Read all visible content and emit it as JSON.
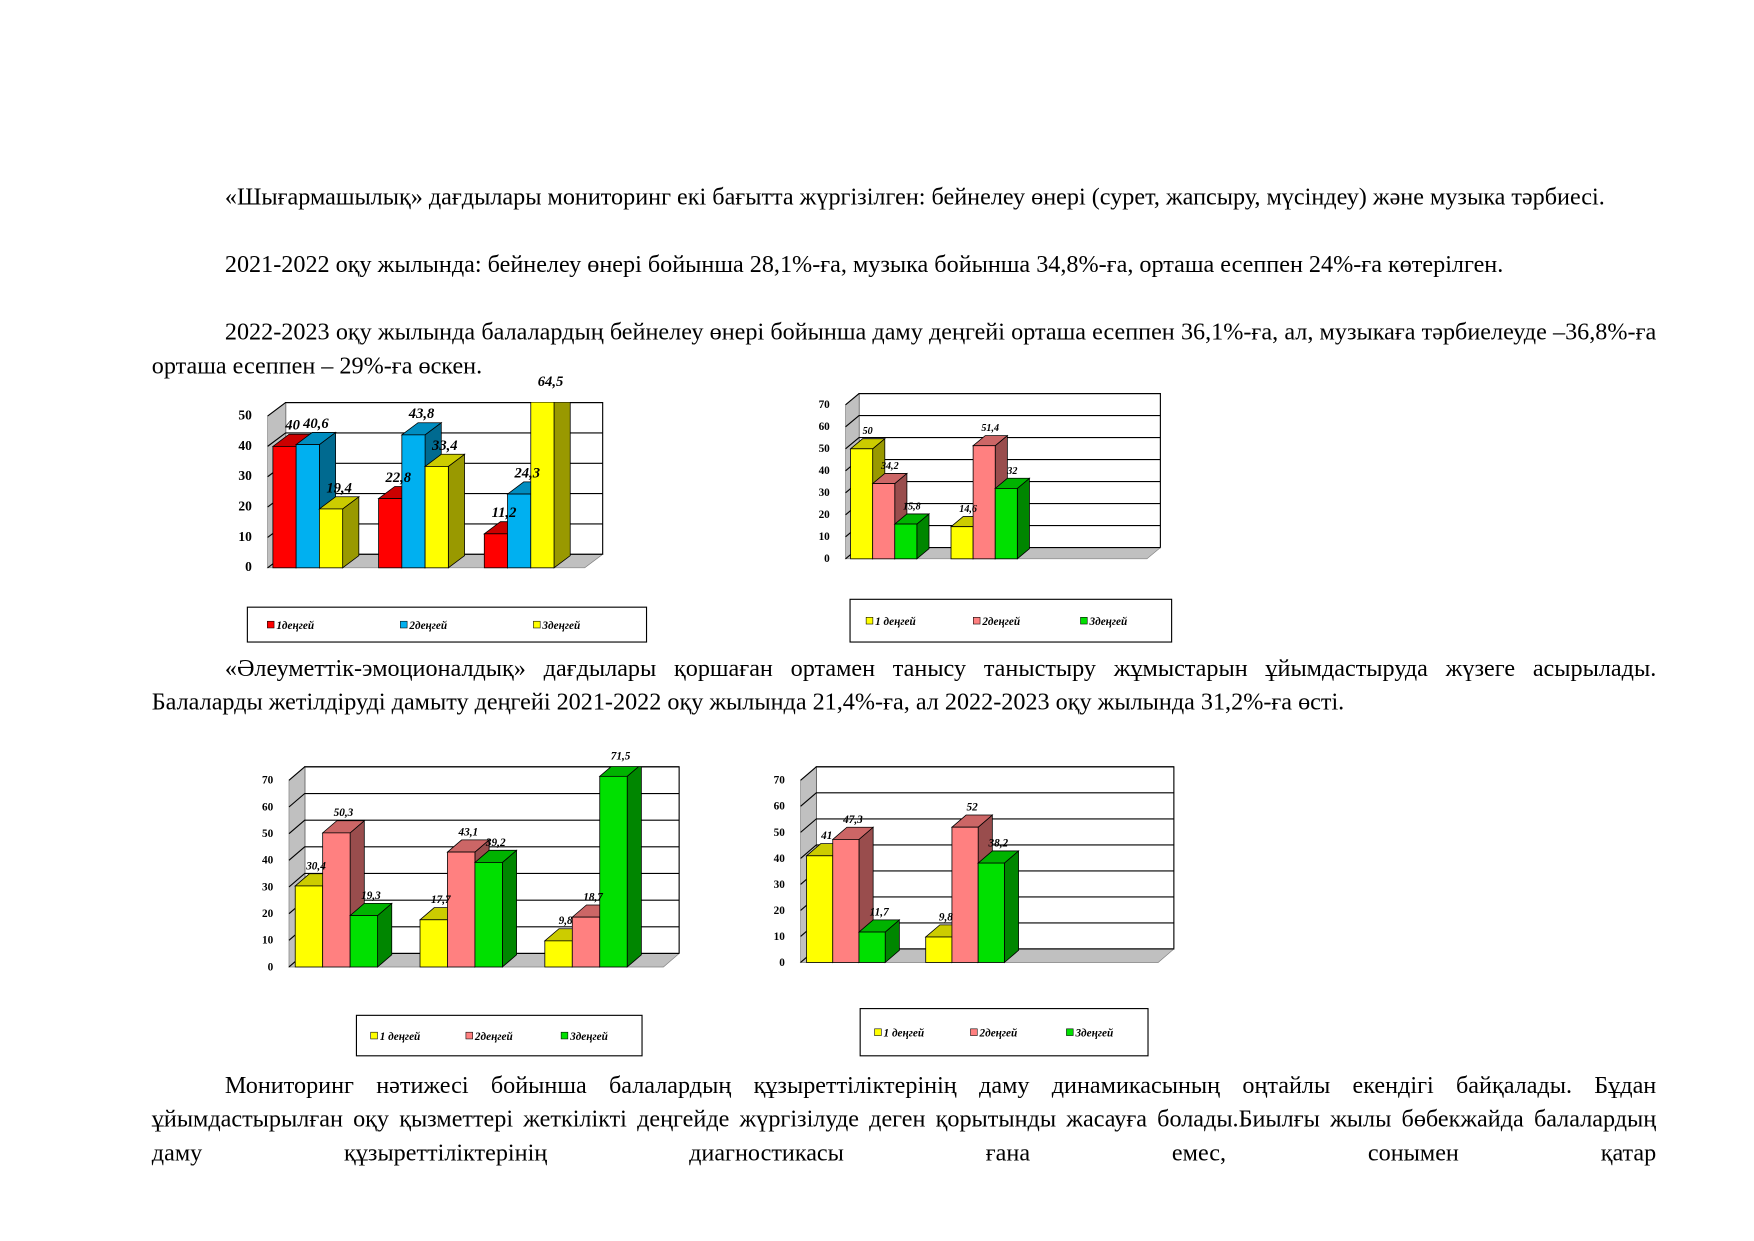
{
  "paragraphs": [
    "«Шығармашылық» дағдылары мониторинг екі бағытта жүргізілген: бейнелеу өнері (сурет, жапсыру, мүсіндеу) және музыка тәрбиесі.",
    "2021-2022 оқу жылында: бейнелеу өнері бойынша 28,1%-ға, музыка бойынша 34,8%-ға, орташа есеппен 24%-ға көтерілген.",
    "2022-2023 оқу жылында балалардың бейнелеу өнері бойынша даму деңгейі орташа есеппен 36,1%-ға, ал, музыкаға тәрбиелеуде –36,8%-ға орташа есеппен – 29%-ға өскен.",
    "«Әлеуметтік-эмоционалдық» дағдылары қоршаған ортамен танысу таныстыру жұмыстарын ұйымдастыруда жүзеге асырылады. Балаларды жетілдіруді дамыту деңгейі 2021-2022 оқу жылында 21,4%-ға, ал 2022-2023 оқу жылында 31,2%-ға өсті.",
    "Мониторинг нәтижесі бойынша балалардың құзыреттіліктерінің даму динамикасының оңтайлы екендігі байқалады. Бұдан ұйымдастырылған оқу қызметтері жеткілікті деңгейде жүргізілуде деген қорытынды жасауға болады.Биылғы жылы бөбекжайда балалардың даму құзыреттіліктерінің диагностикасы ғана емес, сонымен қатар"
  ],
  "chart_data": [
    {
      "type": "bar",
      "categories": [
        null,
        null,
        null
      ],
      "ylim": [
        0,
        50
      ],
      "yticks": [
        0,
        10,
        20,
        30,
        40,
        50
      ],
      "series": [
        {
          "name": "1деңгей",
          "color": "#ff0000",
          "values": [
            40,
            22.8,
            11.2
          ],
          "value_labels": [
            "40",
            "22,8",
            "11,2"
          ]
        },
        {
          "name": "2деңгей",
          "color": "#00b0f0",
          "values": [
            40.6,
            43.8,
            24.3
          ],
          "value_labels": [
            "40,6",
            "43,8",
            "24,3"
          ]
        },
        {
          "name": "3деңгей",
          "color": "#ffff00",
          "values": [
            19.4,
            33.4,
            64.5
          ],
          "value_labels": [
            "19,4",
            "33,4",
            "64,5"
          ]
        }
      ]
    },
    {
      "type": "bar",
      "categories": [
        null,
        null,
        null
      ],
      "ylim": [
        0,
        70
      ],
      "yticks": [
        0,
        10,
        20,
        30,
        40,
        50,
        60,
        70
      ],
      "series": [
        {
          "name": "1 деңгей",
          "color": "#ffff00",
          "values": [
            50,
            14.6,
            null
          ],
          "value_labels": [
            "50",
            "14,6",
            null
          ]
        },
        {
          "name": "2деңгей",
          "color": "#ff8080",
          "values": [
            34.2,
            51.4,
            null
          ],
          "value_labels": [
            "34,2",
            "51,4",
            null
          ]
        },
        {
          "name": "3деңгей",
          "color": "#00e000",
          "values": [
            15.8,
            32,
            null
          ],
          "value_labels": [
            "15,8",
            "32",
            null
          ]
        }
      ]
    },
    {
      "type": "bar",
      "categories": [
        null,
        null,
        null
      ],
      "ylim": [
        0,
        70
      ],
      "yticks": [
        0,
        10,
        20,
        30,
        40,
        50,
        60,
        70
      ],
      "series": [
        {
          "name": "1 деңгей",
          "color": "#ffff00",
          "values": [
            30.4,
            17.7,
            9.8
          ],
          "value_labels": [
            "30,4",
            "17,7",
            "9,8"
          ]
        },
        {
          "name": "2деңгей",
          "color": "#ff8080",
          "values": [
            50.3,
            43.1,
            18.7
          ],
          "value_labels": [
            "50,3",
            "43,1",
            "18,7"
          ]
        },
        {
          "name": "3деңгей",
          "color": "#00e000",
          "values": [
            19.3,
            39.2,
            71.5
          ],
          "value_labels": [
            "19,3",
            "39,2",
            "71,5"
          ]
        }
      ]
    },
    {
      "type": "bar",
      "categories": [
        null,
        null,
        null
      ],
      "ylim": [
        0,
        70
      ],
      "yticks": [
        0,
        10,
        20,
        30,
        40,
        50,
        60,
        70
      ],
      "series": [
        {
          "name": "1 деңгей",
          "color": "#ffff00",
          "values": [
            41,
            9.8,
            null
          ],
          "value_labels": [
            "41",
            "9,8",
            null
          ]
        },
        {
          "name": "2деңгей",
          "color": "#ff8080",
          "values": [
            47.3,
            52,
            null
          ],
          "value_labels": [
            "47,3",
            "52",
            null
          ]
        },
        {
          "name": "3деңгей",
          "color": "#00e000",
          "values": [
            11.7,
            38.2,
            null
          ],
          "value_labels": [
            "11,7",
            "38,2",
            null
          ]
        }
      ]
    }
  ]
}
